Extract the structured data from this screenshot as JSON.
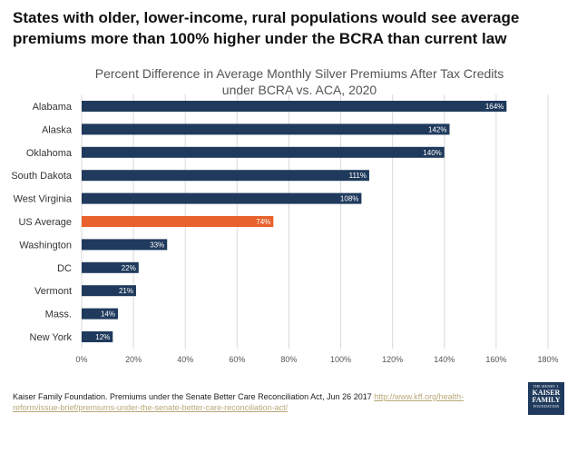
{
  "headline": {
    "line1": "States with older, lower-income, rural populations would see average",
    "line2": "premiums more than 100% higher under the BCRA than current law"
  },
  "chart_data": {
    "type": "bar",
    "orientation": "horizontal",
    "title_line1": "Percent Difference in Average Monthly Silver Premiums After Tax Credits",
    "title_line2": "under BCRA vs. ACA, 2020",
    "categories": [
      "Alabama",
      "Alaska",
      "Oklahoma",
      "South Dakota",
      "West Virginia",
      "US Average",
      "Washington",
      "DC",
      "Vermont",
      "Mass.",
      "New York"
    ],
    "values": [
      164,
      142,
      140,
      111,
      108,
      74,
      33,
      22,
      21,
      14,
      12
    ],
    "value_labels": [
      "164%",
      "142%",
      "140%",
      "111%",
      "108%",
      "74%",
      "33%",
      "22%",
      "21%",
      "14%",
      "12%"
    ],
    "highlight_category": "US Average",
    "xlim": [
      0,
      180
    ],
    "xticks": [
      0,
      20,
      40,
      60,
      80,
      100,
      120,
      140,
      160,
      180
    ],
    "xtick_labels": [
      "0%",
      "20%",
      "40%",
      "60%",
      "80%",
      "100%",
      "120%",
      "140%",
      "160%",
      "180%"
    ],
    "xlabel": "",
    "ylabel": "",
    "grid": "vertical",
    "colors": {
      "bar": "#1f3a5c",
      "highlight": "#e8622c",
      "grid": "#d9d9d9"
    }
  },
  "source": {
    "text": "Kaiser Family Foundation. Premiums under the Senate Better Care Reconciliation Act, Jun 26 2017 ",
    "link_line1": "http://www.kff.org/health-",
    "link_line2": "reform/issue-brief/premiums-under-the-senate-better-care-reconciliation-act/"
  },
  "logo": {
    "line1": "THE HENRY J.",
    "line2": "KAISER",
    "line3": "FAMILY",
    "line4": "FOUNDATION"
  }
}
